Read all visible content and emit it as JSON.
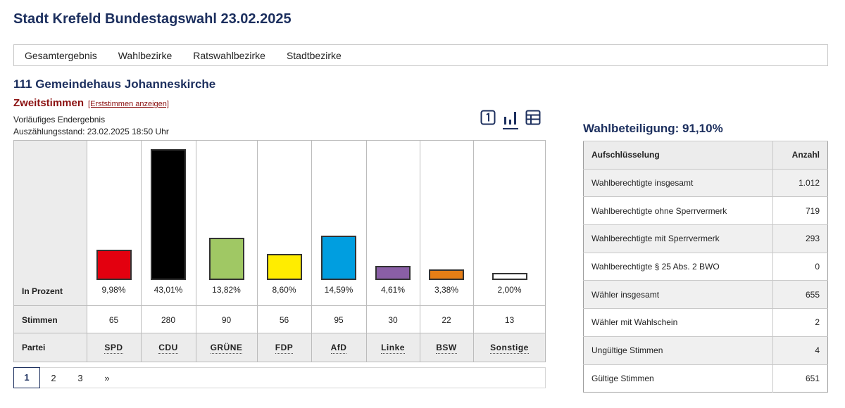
{
  "page": {
    "title": "Stadt Krefeld Bundestagswahl 23.02.2025"
  },
  "nav": [
    "Gesamtergebnis",
    "Wahlbezirke",
    "Ratswahlbezirke",
    "Stadtbezirke"
  ],
  "district": "111 Gemeindehaus Johanneskirche",
  "section": {
    "title": "Zweitstimmen",
    "link": "[Erststimmen anzeigen]",
    "status": "Vorläufiges Endergebnis",
    "count_state": "Auszählungsstand: 23.02.2025 18:50 Uhr"
  },
  "view_icons": [
    "number-one-icon",
    "bar-chart-icon",
    "table-icon"
  ],
  "chart_data": {
    "type": "bar",
    "categories": [
      "SPD",
      "CDU",
      "GRÜNE",
      "FDP",
      "AfD",
      "Linke",
      "BSW",
      "Sonstige"
    ],
    "values": [
      9.98,
      43.01,
      13.82,
      8.6,
      14.59,
      4.61,
      3.38,
      2.0
    ],
    "value_labels": [
      "9,98%",
      "43,01%",
      "13,82%",
      "8,60%",
      "14,59%",
      "4,61%",
      "3,38%",
      "2,00%"
    ],
    "votes": [
      "65",
      "280",
      "90",
      "56",
      "95",
      "30",
      "22",
      "13"
    ],
    "colors": [
      "#e3000f",
      "#000000",
      "#a0c864",
      "#ffed00",
      "#009ee0",
      "#8a5fa6",
      "#e67e16",
      "#ffffff"
    ],
    "row_labels": {
      "percent": "In Prozent",
      "votes": "Stimmen",
      "party": "Partei"
    },
    "ylim": [
      0,
      43.01
    ]
  },
  "pagination": [
    "1",
    "2",
    "3",
    "»"
  ],
  "turnout": {
    "title": "Wahlbeteiligung: 91,10%",
    "headers": [
      "Aufschlüsselung",
      "Anzahl"
    ],
    "rows": [
      [
        "Wahlberechtigte insgesamt",
        "1.012"
      ],
      [
        "Wahlberechtigte ohne Sperrvermerk",
        "719"
      ],
      [
        "Wahlberechtigte mit Sperrvermerk",
        "293"
      ],
      [
        "Wahlberechtigte § 25 Abs. 2 BWO",
        "0"
      ],
      [
        "Wähler insgesamt",
        "655"
      ],
      [
        "Wähler mit Wahlschein",
        "2"
      ],
      [
        "Ungültige Stimmen",
        "4"
      ],
      [
        "Gültige Stimmen",
        "651"
      ]
    ]
  }
}
